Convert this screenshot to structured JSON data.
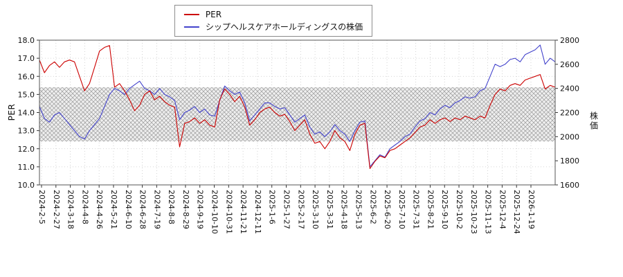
{
  "chart_data": {
    "type": "line",
    "legend_position": "top-center",
    "grid": true,
    "band": {
      "axis": "left",
      "from": 12.4,
      "to": 15.4,
      "style": "crosshatch"
    },
    "left_axis": {
      "label": "PER",
      "min": 10.0,
      "max": 18.0,
      "ticks": [
        "18.0",
        "17.0",
        "16.0",
        "15.0",
        "14.0",
        "13.0",
        "12.0",
        "11.0",
        "10.0"
      ]
    },
    "right_axis": {
      "label": "株価",
      "min": 1600,
      "max": 2800,
      "ticks": [
        "2800",
        "2600",
        "2400",
        "2200",
        "2000",
        "1800",
        "1600"
      ]
    },
    "x_tick_labels": [
      "2024-2-5",
      "2024-2-27",
      "2024-3-18",
      "2024-4-8",
      "2024-4-26",
      "2024-5-21",
      "2024-6-10",
      "2024-6-28",
      "2024-7-19",
      "2024-8-8",
      "2024-8-29",
      "2024-9-19",
      "2024-10-10",
      "2024-10-31",
      "2024-11-21",
      "2024-12-11",
      "2025-1-6",
      "2025-1-27",
      "2025-2-17",
      "2025-3-10",
      "2025-3-31",
      "2025-4-18",
      "2025-5-13",
      "2025-6-2",
      "2025-6-20",
      "2025-7-10",
      "2025-7-31",
      "2025-8-21",
      "2025-9-10",
      "2025-10-2",
      "2025-10-23",
      "2025-11-13",
      "2025-12-4",
      "2025-12-24",
      "2026-1-19"
    ],
    "series": [
      {
        "name": "PER",
        "axis": "left",
        "color": "#cc0000",
        "values": [
          16.9,
          16.2,
          16.6,
          16.8,
          16.5,
          16.8,
          16.9,
          16.8,
          16.0,
          15.2,
          15.6,
          16.5,
          17.4,
          17.6,
          17.7,
          15.4,
          15.6,
          15.2,
          14.7,
          14.1,
          14.4,
          15.0,
          15.2,
          14.7,
          14.9,
          14.6,
          14.4,
          14.3,
          12.1,
          13.4,
          13.5,
          13.7,
          13.4,
          13.6,
          13.3,
          13.2,
          14.7,
          15.3,
          15.0,
          14.6,
          14.9,
          14.3,
          13.3,
          13.6,
          14.0,
          14.2,
          14.3,
          14.0,
          13.8,
          13.9,
          13.5,
          13.0,
          13.3,
          13.6,
          12.8,
          12.3,
          12.4,
          12.0,
          12.4,
          13.0,
          12.6,
          12.4,
          11.9,
          12.8,
          13.3,
          13.4,
          10.9,
          11.3,
          11.6,
          11.5,
          11.9,
          12.0,
          12.2,
          12.4,
          12.6,
          12.9,
          13.2,
          13.3,
          13.6,
          13.4,
          13.6,
          13.7,
          13.5,
          13.7,
          13.6,
          13.8,
          13.7,
          13.6,
          13.8,
          13.7,
          14.4,
          15.0,
          15.3,
          15.2,
          15.5,
          15.6,
          15.5,
          15.8,
          15.9,
          16.0,
          16.1,
          15.3,
          15.5,
          15.4
        ]
      },
      {
        "name": "シップヘルスケアホールディングスの株価",
        "axis": "right",
        "color": "#4343cc",
        "values": [
          2250,
          2150,
          2120,
          2180,
          2200,
          2150,
          2100,
          2050,
          2000,
          1980,
          2050,
          2100,
          2150,
          2250,
          2350,
          2400,
          2380,
          2350,
          2400,
          2430,
          2460,
          2400,
          2380,
          2350,
          2400,
          2350,
          2330,
          2300,
          2140,
          2200,
          2220,
          2250,
          2200,
          2230,
          2180,
          2170,
          2300,
          2420,
          2380,
          2350,
          2370,
          2280,
          2130,
          2180,
          2230,
          2280,
          2280,
          2250,
          2230,
          2240,
          2180,
          2120,
          2150,
          2180,
          2080,
          2020,
          2040,
          2000,
          2040,
          2100,
          2050,
          2020,
          1960,
          2050,
          2120,
          2130,
          1750,
          1800,
          1850,
          1830,
          1900,
          1930,
          1960,
          2000,
          2020,
          2080,
          2130,
          2150,
          2200,
          2180,
          2230,
          2260,
          2240,
          2280,
          2300,
          2330,
          2320,
          2330,
          2380,
          2400,
          2500,
          2600,
          2580,
          2600,
          2640,
          2650,
          2620,
          2680,
          2700,
          2720,
          2760,
          2600,
          2650,
          2620
        ]
      }
    ],
    "colors": {
      "grid": "#c8c8c8",
      "frame": "#555555",
      "hatch_line": "#9a9a9a",
      "hatch_bg": "#efefef"
    }
  }
}
